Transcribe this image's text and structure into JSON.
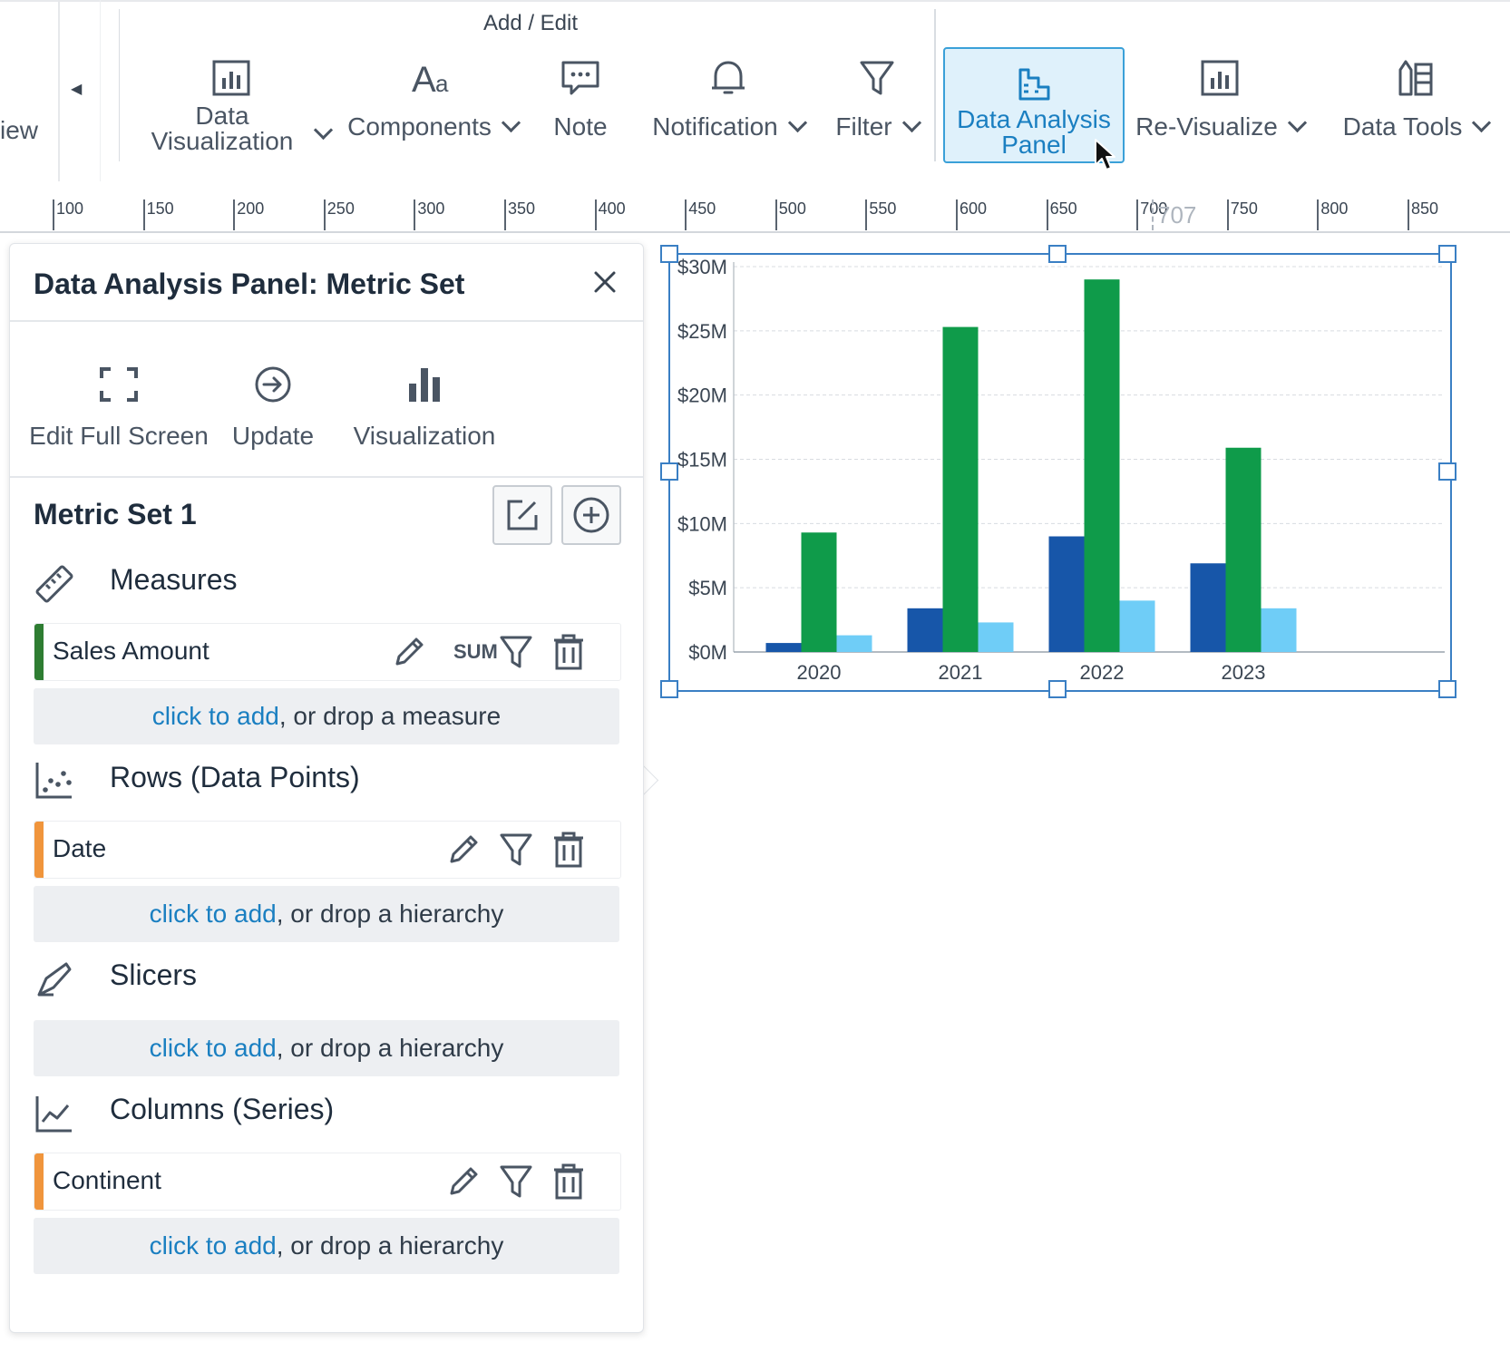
{
  "ribbon": {
    "view_fragment": "iew",
    "group_label": "Add / Edit",
    "tools": {
      "data_visualization": {
        "line1": "Data",
        "line2": "Visualization"
      },
      "components": "Components",
      "note": "Note",
      "notification": "Notification",
      "filter": "Filter",
      "data_analysis_panel": {
        "line1": "Data Analysis",
        "line2": "Panel"
      },
      "re_visualize": "Re-Visualize",
      "data_tools": "Data Tools"
    }
  },
  "ruler": {
    "ticks": [
      "100",
      "150",
      "200",
      "250",
      "300",
      "350",
      "400",
      "450",
      "500",
      "550",
      "600",
      "650",
      "700",
      "750",
      "800",
      "850"
    ],
    "marker": "707"
  },
  "panel": {
    "title": "Data Analysis Panel: Metric Set",
    "tools": {
      "edit_full_screen": "Edit Full Screen",
      "update": "Update",
      "visualization": "Visualization"
    },
    "metric_set_title": "Metric Set 1",
    "sections": {
      "measures": {
        "title": "Measures",
        "field": "Sales Amount",
        "aggregation": "SUM",
        "add_link": "click to add",
        "add_rest": ", or drop a measure"
      },
      "rows": {
        "title": "Rows (Data Points)",
        "field": "Date",
        "add_link": "click to add",
        "add_rest": ", or drop a hierarchy"
      },
      "slicers": {
        "title": "Slicers",
        "add_link": "click to add",
        "add_rest": ", or drop a hierarchy"
      },
      "columns": {
        "title": "Columns (Series)",
        "field": "Continent",
        "add_link": "click to add",
        "add_rest": ", or drop a hierarchy"
      }
    }
  },
  "colors": {
    "accent": "#1a7fc1",
    "measure_bar": "#2e7d32",
    "hierarchy_bar": "#f0953c",
    "series": [
      "#1756a9",
      "#0f9b4a",
      "#6fcdf7"
    ]
  },
  "chart_data": {
    "type": "bar",
    "categories": [
      "2020",
      "2021",
      "2022",
      "2023"
    ],
    "series": [
      {
        "values": [
          0.7,
          3.4,
          9.0,
          6.9
        ]
      },
      {
        "values": [
          9.3,
          25.3,
          29.0,
          15.9
        ]
      },
      {
        "values": [
          1.3,
          2.3,
          4.0,
          3.4
        ]
      }
    ],
    "y_ticks": [
      "$0M",
      "$5M",
      "$10M",
      "$15M",
      "$20M",
      "$25M",
      "$30M"
    ],
    "ylim": [
      0,
      30
    ],
    "grid": true
  }
}
